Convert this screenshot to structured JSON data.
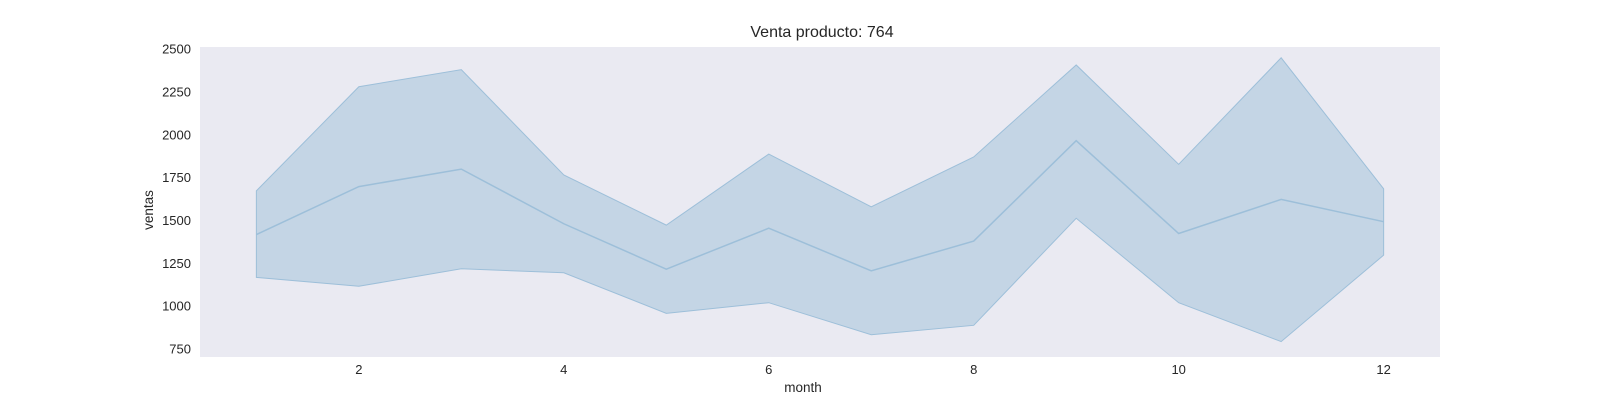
{
  "chart_data": {
    "type": "line",
    "title": "Venta producto: 764",
    "xlabel": "month",
    "ylabel": "ventas",
    "x": [
      1,
      2,
      3,
      4,
      5,
      6,
      7,
      8,
      9,
      10,
      11,
      12
    ],
    "series": [
      {
        "values": [
          1415,
          1695,
          1797,
          1478,
          1213,
          1452,
          1203,
          1377,
          1963,
          1421,
          1620,
          1490
        ],
        "ci_upper": [
          1670,
          2278,
          2378,
          1763,
          1470,
          1885,
          1577,
          1868,
          2405,
          1825,
          2447,
          1682
        ],
        "ci_lower": [
          1165,
          1113,
          1215,
          1192,
          955,
          1017,
          830,
          885,
          1510,
          1017,
          790,
          1295
        ]
      }
    ],
    "xticks": [
      2,
      4,
      6,
      8,
      10,
      12
    ],
    "yticks": [
      750,
      1000,
      1250,
      1500,
      1750,
      2000,
      2250,
      2500
    ],
    "xlim": [
      0.45,
      12.55
    ],
    "ylim": [
      700,
      2510
    ],
    "grid": false,
    "colors": {
      "plot_background": "#eaeaf2",
      "line": "#9dbfd9",
      "band_fill": "#b3cce0"
    }
  }
}
